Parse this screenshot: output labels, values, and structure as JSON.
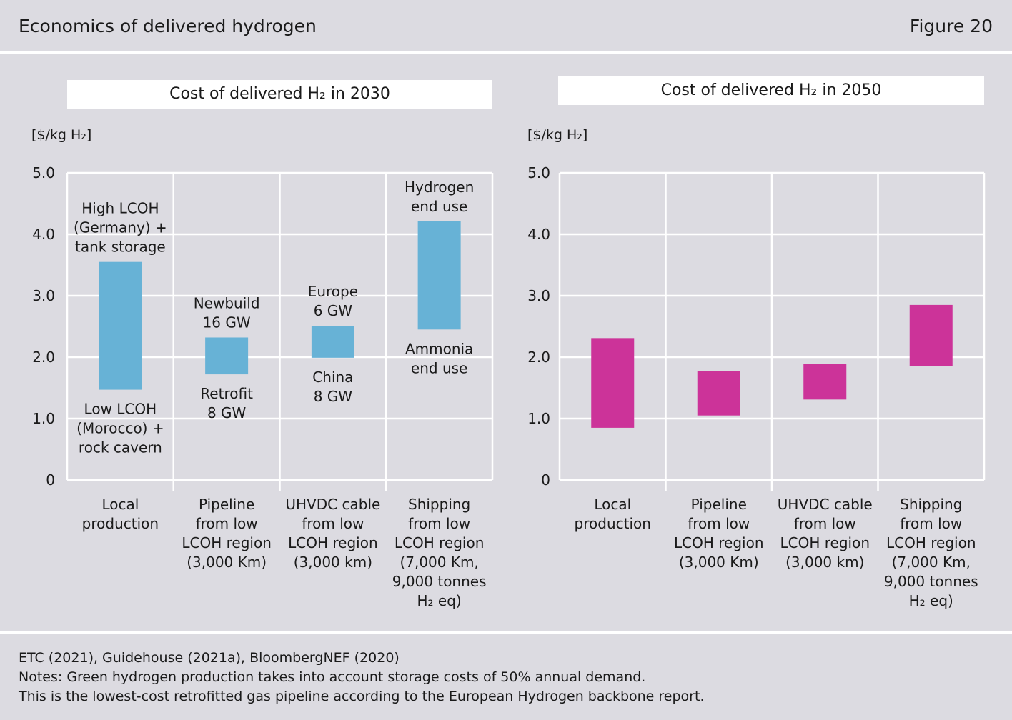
{
  "header": {
    "title": "Economics of delivered hydrogen",
    "figure": "Figure 20"
  },
  "colors": {
    "bar_2030": "#67b2d6",
    "bar_2050": "#cc3399",
    "grid": "#ffffff",
    "background": "#dcdbe1"
  },
  "chart_data": [
    {
      "type": "bar",
      "title": "Cost of delivered H₂ in 2030",
      "ylabel": "[$/kg H₂]",
      "ylim": [
        0,
        5
      ],
      "yticks": [
        "0",
        "1.0",
        "2.0",
        "3.0",
        "4.0",
        "5.0"
      ],
      "grid": true,
      "categories": [
        [
          "Local",
          "production"
        ],
        [
          "Pipeline",
          "from low",
          "LCOH region",
          "(3,000 Km)"
        ],
        [
          "UHVDC cable",
          "from low",
          "LCOH region",
          "(3,000 km)"
        ],
        [
          "Shipping",
          "from low",
          "LCOH region",
          "(7,000 Km,",
          "9,000 tonnes",
          "H₂ eq)"
        ]
      ],
      "ranges": [
        [
          1.47,
          3.55
        ],
        [
          1.72,
          2.32
        ],
        [
          1.99,
          2.51
        ],
        [
          2.45,
          4.21
        ]
      ],
      "annotations": [
        {
          "bar": 0,
          "pos": "top",
          "lines": [
            "High LCOH",
            "(Germany) +",
            "tank storage"
          ]
        },
        {
          "bar": 0,
          "pos": "bottom",
          "lines": [
            "Low LCOH",
            "(Morocco) +",
            "rock cavern"
          ]
        },
        {
          "bar": 1,
          "pos": "top",
          "lines": [
            "Newbuild",
            "16 GW"
          ]
        },
        {
          "bar": 1,
          "pos": "bottom",
          "lines": [
            "Retrofit",
            "8 GW"
          ]
        },
        {
          "bar": 2,
          "pos": "top",
          "lines": [
            "Europe",
            "6 GW"
          ]
        },
        {
          "bar": 2,
          "pos": "bottom",
          "lines": [
            "China",
            "8 GW"
          ]
        },
        {
          "bar": 3,
          "pos": "top",
          "lines": [
            "Hydrogen",
            "end use"
          ]
        },
        {
          "bar": 3,
          "pos": "bottom",
          "lines": [
            "Ammonia",
            "end use"
          ]
        }
      ]
    },
    {
      "type": "bar",
      "title": "Cost of delivered H₂ in 2050",
      "ylabel": "[$/kg H₂]",
      "ylim": [
        0,
        5
      ],
      "yticks": [
        "0",
        "1.0",
        "2.0",
        "3.0",
        "4.0",
        "5.0"
      ],
      "grid": true,
      "categories": [
        [
          "Local",
          "production"
        ],
        [
          "Pipeline",
          "from low",
          "LCOH region",
          "(3,000 Km)"
        ],
        [
          "UHVDC cable",
          "from low",
          "LCOH region",
          "(3,000 km)"
        ],
        [
          "Shipping",
          "from low",
          "LCOH region",
          "(7,000 Km,",
          "9,000 tonnes",
          "H₂ eq)"
        ]
      ],
      "ranges": [
        [
          0.85,
          2.31
        ],
        [
          1.05,
          1.77
        ],
        [
          1.31,
          1.89
        ],
        [
          1.86,
          2.85
        ]
      ],
      "annotations": []
    }
  ],
  "footer": {
    "source": "ETC (2021), Guidehouse (2021a), BloombergNEF (2020)",
    "note1": "Notes: Green hydrogen production takes into account storage costs of 50% annual demand.",
    "note2": "This is the lowest-cost retrofitted gas pipeline according to the European Hydrogen backbone report."
  }
}
